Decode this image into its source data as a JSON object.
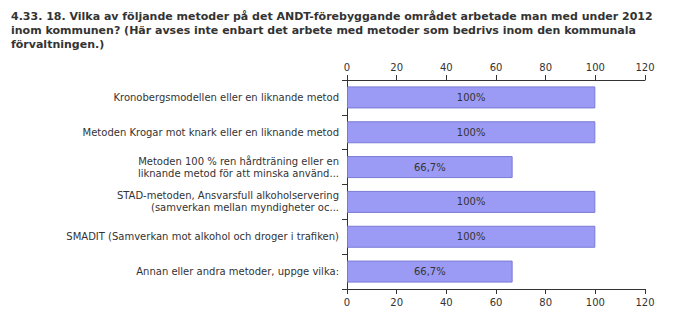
{
  "chart_data": {
    "type": "bar",
    "orientation": "horizontal",
    "title": "4.33. 18. Vilka av följande metoder på det ANDT-förebyggande området arbetade man med under 2012 inom kommunen? (Här avses inte enbart det arbete med metoder som bedrivs inom den kommunala förvaltningen.)",
    "categories": [
      "Kronobergsmodellen eller en liknande metod",
      "Metoden Krogar mot knark eller en liknande metod",
      "Metoden 100 % ren hårdträning eller en\nliknande metod för att minska använd...",
      "STAD-metoden, Ansvarsfull alkoholservering\n(samverkan mellan myndigheter oc...",
      "SMADIT (Samverkan mot alkohol och droger i trafiken)",
      "Annan eller andra metoder, uppge vilka:"
    ],
    "values": [
      100,
      100,
      66.7,
      100,
      100,
      66.7
    ],
    "value_labels": [
      "100%",
      "100%",
      "66,7%",
      "100%",
      "100%",
      "66,7%"
    ],
    "data_labels": true,
    "color": "#9b9bf5",
    "xlim": [
      0,
      120
    ],
    "xticks": [
      0,
      20,
      40,
      60,
      80,
      100,
      120
    ],
    "grid": false
  }
}
